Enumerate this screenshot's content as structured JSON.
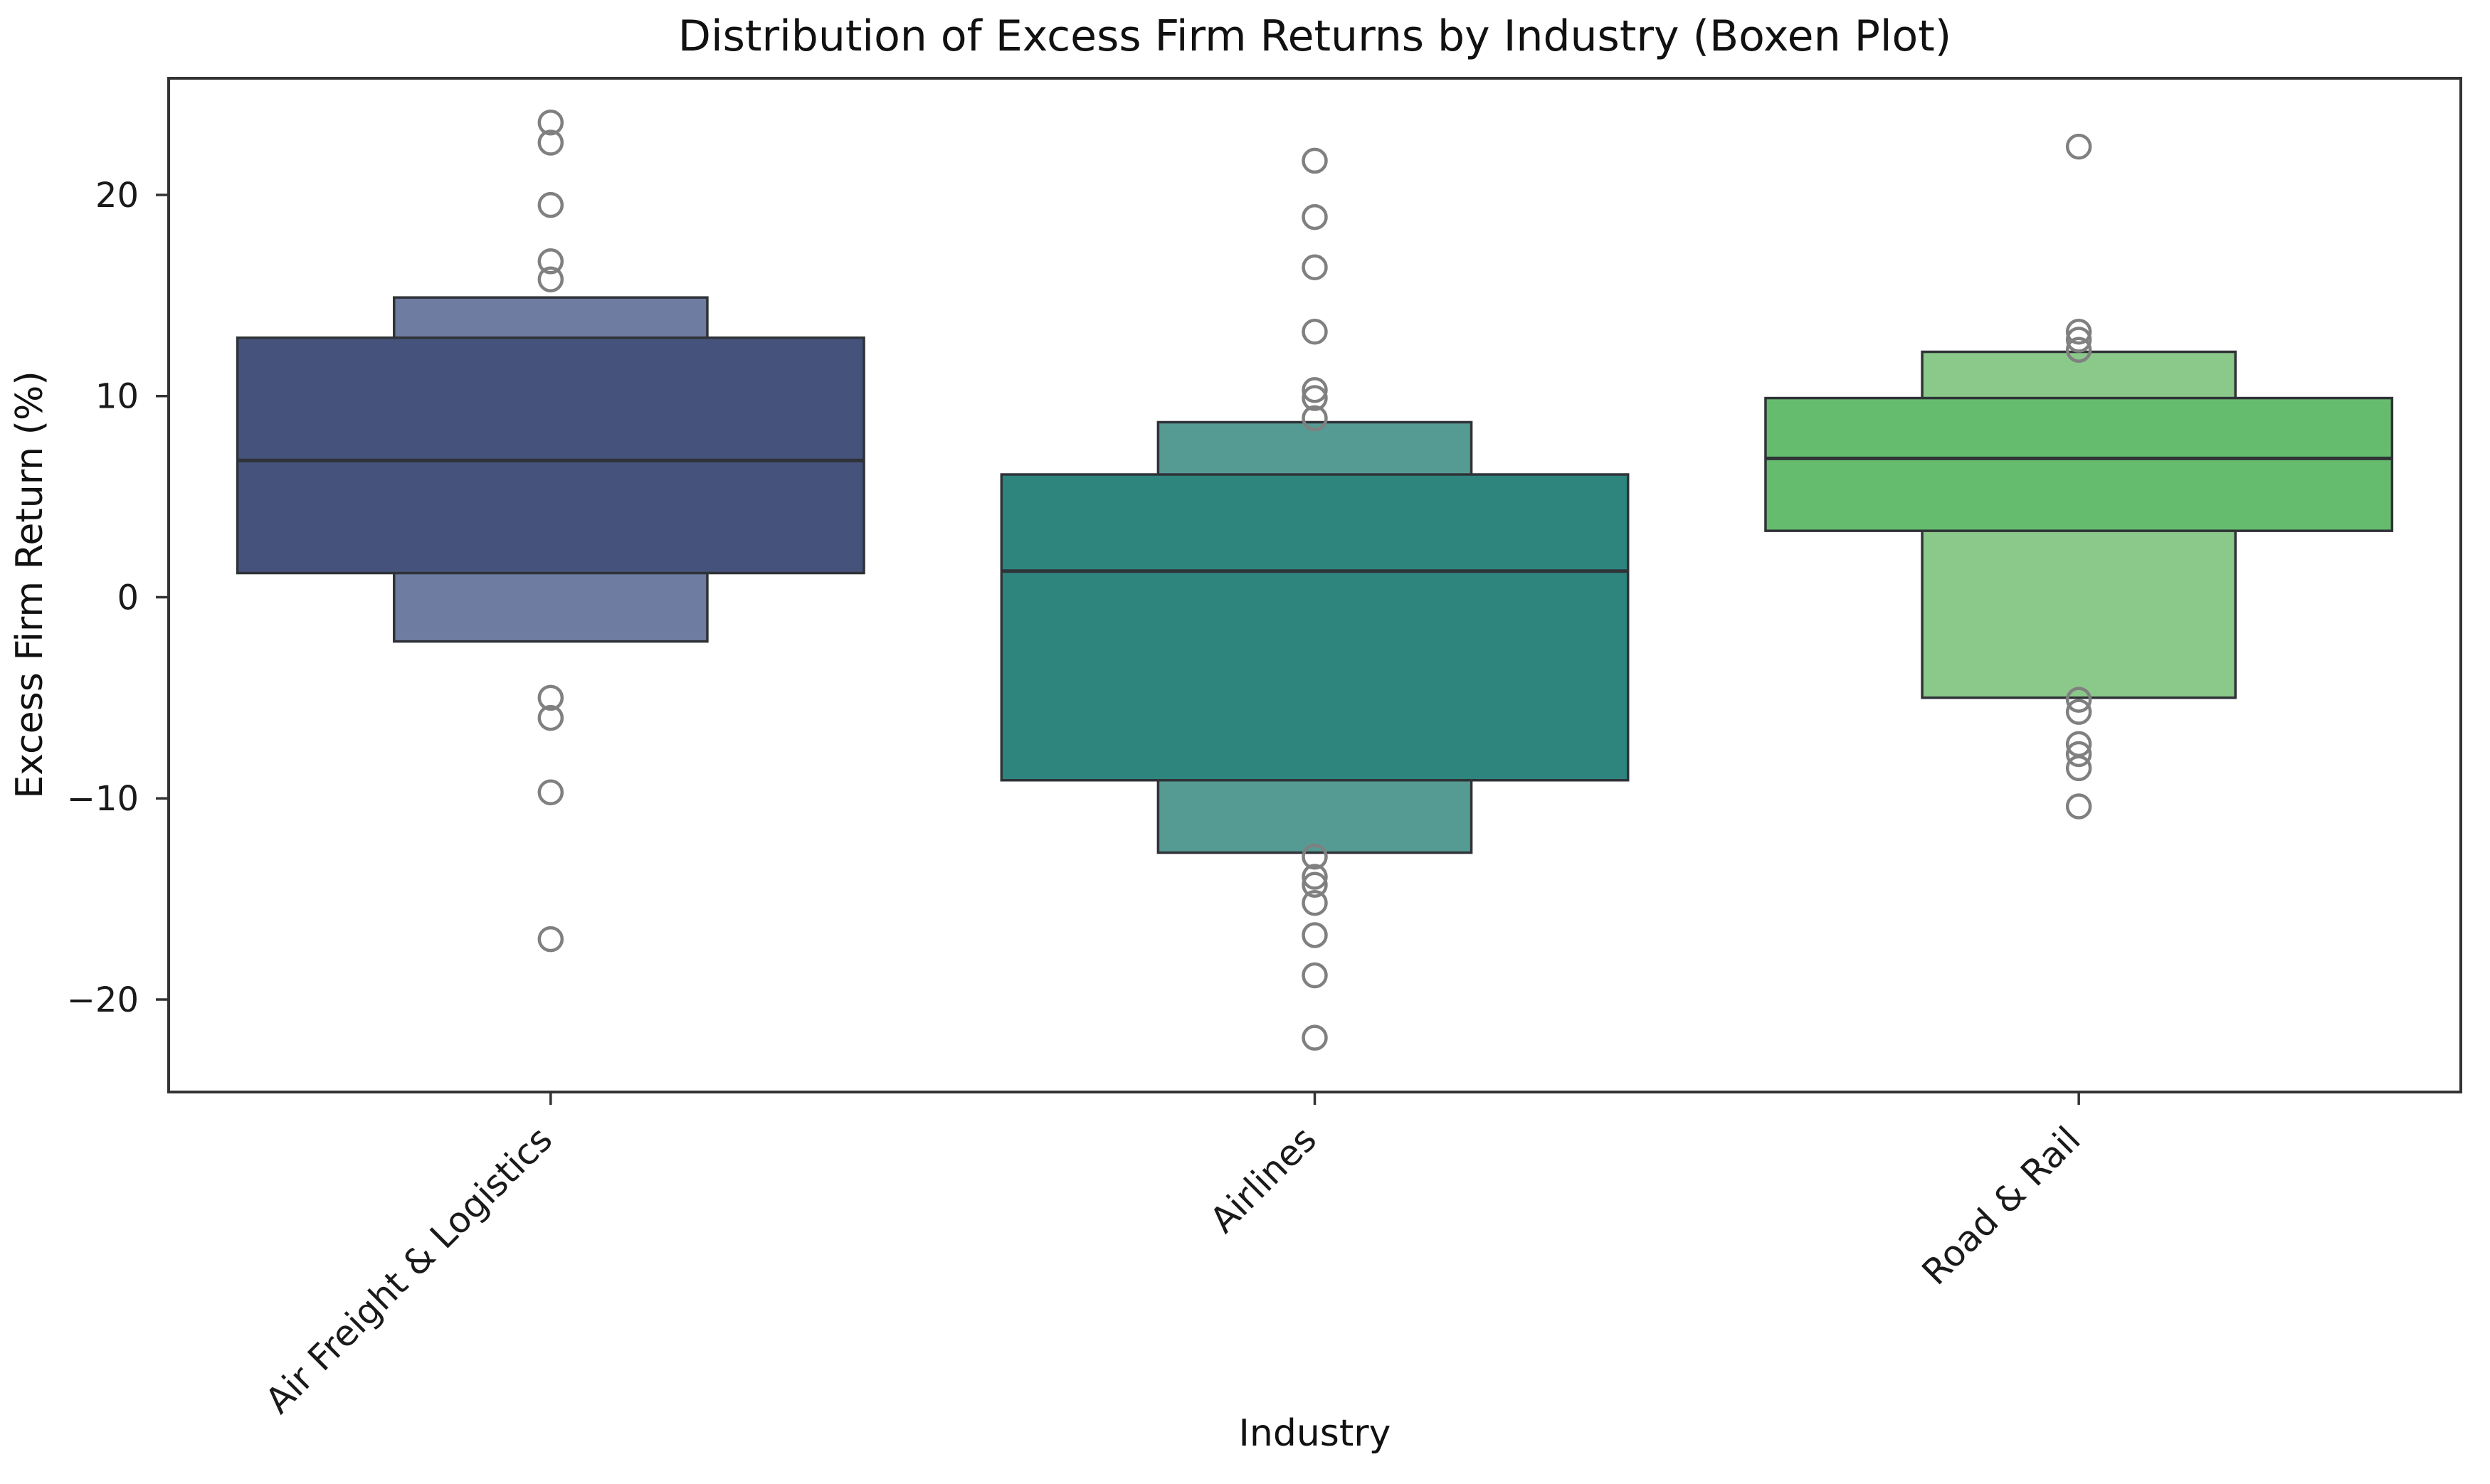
{
  "chart_data": {
    "type": "boxen",
    "title": "Distribution of Excess Firm Returns by Industry (Boxen Plot)",
    "xlabel": "Industry",
    "ylabel": "Excess Firm Return (%)",
    "categories": [
      "Air Freight & Logistics",
      "Airlines",
      "Road & Rail"
    ],
    "ylim": [
      -24.6,
      25.8
    ],
    "yticks": [
      -20,
      -10,
      0,
      10,
      20
    ],
    "legend": "none",
    "grid": false,
    "box_width_fracs": [
      0.82,
      0.41
    ],
    "series": [
      {
        "name": "Air Freight & Logistics",
        "colors": {
          "inner_box": "#45537c",
          "outer_box": "#6d7ca0"
        },
        "median": 6.8,
        "boxes": [
          {
            "level": 1,
            "lo": 1.2,
            "hi": 12.9
          },
          {
            "level": 2,
            "lo": -2.2,
            "hi": 14.9
          }
        ],
        "outliers": [
          23.6,
          22.6,
          19.5,
          16.7,
          15.8,
          -5.0,
          -6.0,
          -9.7,
          -17.0
        ]
      },
      {
        "name": "Airlines",
        "colors": {
          "inner_box": "#2e857e",
          "outer_box": "#569a94"
        },
        "median": 1.3,
        "boxes": [
          {
            "level": 1,
            "lo": -9.1,
            "hi": 6.1
          },
          {
            "level": 2,
            "lo": -12.7,
            "hi": 8.7
          }
        ],
        "outliers": [
          21.7,
          18.9,
          16.4,
          13.2,
          10.3,
          9.9,
          8.9,
          -12.9,
          -13.9,
          -14.3,
          -15.2,
          -16.8,
          -18.8,
          -21.9
        ]
      },
      {
        "name": "Road & Rail",
        "colors": {
          "inner_box": "#66bc6e",
          "outer_box": "#8bc98a"
        },
        "median": 6.9,
        "boxes": [
          {
            "level": 1,
            "lo": 3.3,
            "hi": 9.9
          },
          {
            "level": 2,
            "lo": -5.0,
            "hi": 12.2
          }
        ],
        "outliers": [
          22.4,
          13.2,
          12.8,
          12.3,
          -5.1,
          -5.7,
          -7.3,
          -7.8,
          -8.5,
          -10.4
        ]
      }
    ],
    "styles": {
      "spine_color": "#333333",
      "box_edge_color": "#2f3337",
      "median_color": "#2f3337",
      "outlier_color": "#808080",
      "background": "#ffffff",
      "tick_label_color": "#1a1a1a"
    }
  }
}
